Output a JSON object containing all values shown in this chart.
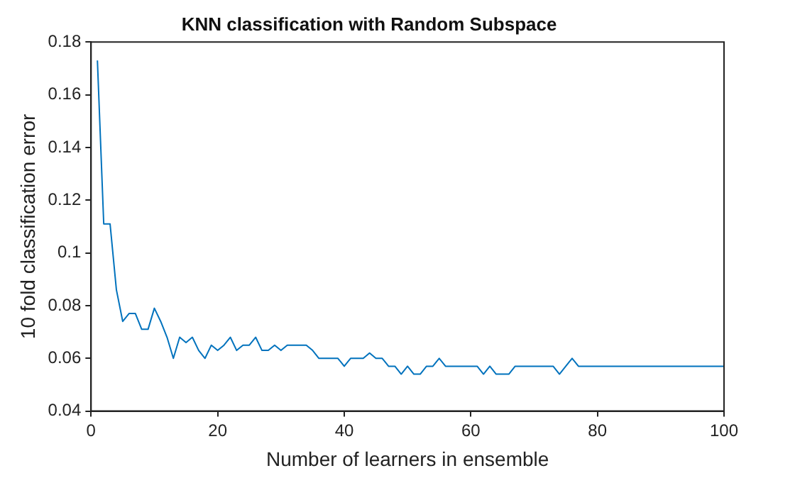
{
  "chart_data": {
    "type": "line",
    "title": "KNN classification with Random Subspace",
    "xlabel": "Number of learners in ensemble",
    "ylabel": "10 fold classification error",
    "x": [
      1,
      2,
      3,
      4,
      5,
      6,
      7,
      8,
      9,
      10,
      11,
      12,
      13,
      14,
      15,
      16,
      17,
      18,
      19,
      20,
      21,
      22,
      23,
      24,
      25,
      26,
      27,
      28,
      29,
      30,
      31,
      32,
      33,
      34,
      35,
      36,
      37,
      38,
      39,
      40,
      41,
      42,
      43,
      44,
      45,
      46,
      47,
      48,
      49,
      50,
      51,
      52,
      53,
      54,
      55,
      56,
      57,
      58,
      59,
      60,
      61,
      62,
      63,
      64,
      65,
      66,
      67,
      68,
      69,
      70,
      71,
      72,
      73,
      74,
      75,
      76,
      77,
      78,
      79,
      80,
      81,
      82,
      83,
      84,
      85,
      86,
      87,
      88,
      89,
      90,
      91,
      92,
      93,
      94,
      95,
      96,
      97,
      98,
      99,
      100
    ],
    "series": [
      {
        "color": "#0072bd",
        "values": [
          0.173,
          0.111,
          0.111,
          0.086,
          0.074,
          0.077,
          0.077,
          0.071,
          0.071,
          0.079,
          0.074,
          0.068,
          0.06,
          0.068,
          0.066,
          0.068,
          0.063,
          0.06,
          0.065,
          0.063,
          0.065,
          0.068,
          0.063,
          0.065,
          0.065,
          0.068,
          0.063,
          0.063,
          0.065,
          0.063,
          0.065,
          0.065,
          0.065,
          0.065,
          0.063,
          0.06,
          0.06,
          0.06,
          0.06,
          0.057,
          0.06,
          0.06,
          0.06,
          0.062,
          0.06,
          0.06,
          0.057,
          0.057,
          0.054,
          0.057,
          0.054,
          0.054,
          0.057,
          0.057,
          0.06,
          0.057,
          0.057,
          0.057,
          0.057,
          0.057,
          0.057,
          0.054,
          0.057,
          0.054,
          0.054,
          0.054,
          0.057,
          0.057,
          0.057,
          0.057,
          0.057,
          0.057,
          0.057,
          0.054,
          0.057,
          0.06,
          0.057,
          0.057,
          0.057,
          0.057,
          0.057,
          0.057,
          0.057,
          0.057,
          0.057,
          0.057,
          0.057,
          0.057,
          0.057,
          0.057,
          0.057,
          0.057,
          0.057,
          0.057,
          0.057,
          0.057,
          0.057,
          0.057,
          0.057,
          0.057
        ]
      }
    ],
    "xlim": [
      0,
      100
    ],
    "xticks": [
      0,
      20,
      40,
      60,
      80,
      100
    ],
    "ylim": [
      0.04,
      0.18
    ],
    "yticks": [
      0.04,
      0.06,
      0.08,
      0.1,
      0.12,
      0.14,
      0.16,
      0.18
    ],
    "grid": false,
    "legend": false,
    "marker": "none",
    "line_style": "solid"
  }
}
